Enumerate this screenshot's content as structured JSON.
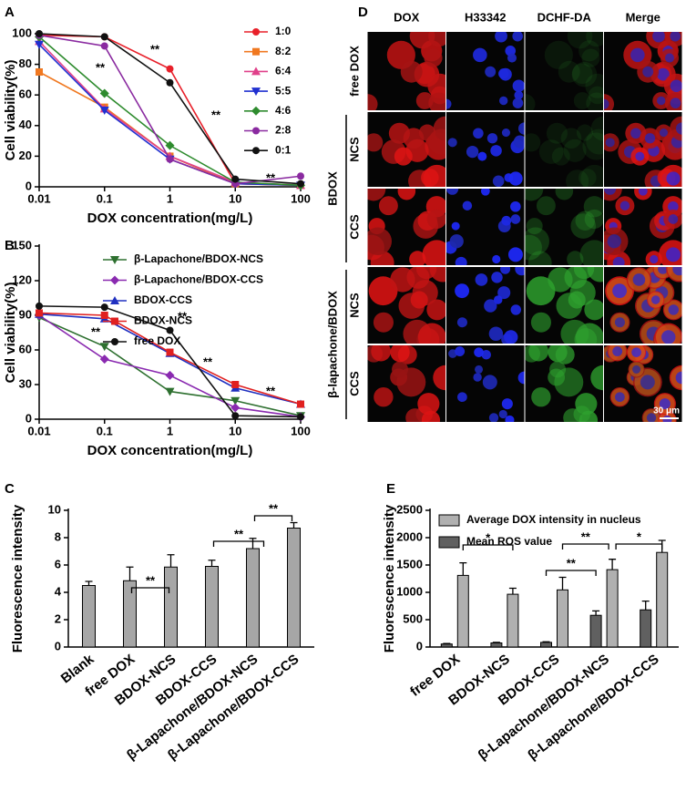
{
  "chart_data": [
    {
      "type": "line",
      "panel": "A",
      "x": [
        0.01,
        0.1,
        1,
        10,
        100
      ],
      "log_x": true,
      "xlim": [
        0.01,
        100
      ],
      "xticks": [
        0.01,
        0.1,
        1,
        10,
        100
      ],
      "ylim": [
        0,
        100
      ],
      "yticks": [
        0,
        20,
        40,
        60,
        80,
        100
      ],
      "x_label": "DOX concentration(mg/L)",
      "y_label": "Cell viability(%)",
      "legend": "upper right",
      "annotations": [
        "**",
        "**",
        "**",
        "**"
      ],
      "series": [
        {
          "name": "1:0",
          "color": "#e8202a",
          "marker": "circle",
          "values": [
            99,
            98,
            77,
            2,
            1
          ]
        },
        {
          "name": "8:2",
          "color": "#f07820",
          "marker": "square",
          "values": [
            75,
            52,
            20,
            2,
            1
          ]
        },
        {
          "name": "6:4",
          "color": "#e0408a",
          "marker": "triangle",
          "values": [
            95,
            51,
            20,
            3,
            1
          ]
        },
        {
          "name": "5:5",
          "color": "#2030d0",
          "marker": "triangle-down",
          "values": [
            93,
            50,
            18,
            2,
            1
          ]
        },
        {
          "name": "4:6",
          "color": "#2e8b2e",
          "marker": "diamond",
          "values": [
            98,
            61,
            27,
            3,
            1
          ]
        },
        {
          "name": "2:8",
          "color": "#8a2aa0",
          "marker": "circle",
          "values": [
            99,
            92,
            18,
            2,
            7
          ]
        },
        {
          "name": "0:1",
          "color": "#111111",
          "marker": "circle",
          "values": [
            100,
            98,
            68,
            5,
            2
          ]
        }
      ]
    },
    {
      "type": "line",
      "panel": "B",
      "x": [
        0.01,
        0.1,
        1,
        10,
        100
      ],
      "log_x": true,
      "xlim": [
        0.01,
        100
      ],
      "xticks": [
        0.01,
        0.1,
        1,
        10,
        100
      ],
      "ylim": [
        0,
        150
      ],
      "yticks": [
        0,
        30,
        60,
        90,
        120,
        150
      ],
      "x_label": "DOX concentration(mg/L)",
      "y_label": "Cell viability(%)",
      "legend": "upper left",
      "annotations": [
        "**",
        "**",
        "**",
        "**"
      ],
      "series": [
        {
          "name": "β-Lapachone/BDOX-NCS",
          "color": "#2e7030",
          "marker": "triangle-down",
          "values": [
            88,
            63,
            24,
            16,
            3
          ]
        },
        {
          "name": "β-Lapachone/BDOX-CCS",
          "color": "#8a2ab0",
          "marker": "diamond",
          "values": [
            90,
            52,
            38,
            10,
            2
          ]
        },
        {
          "name": "BDOX-CCS",
          "color": "#2030c0",
          "marker": "triangle",
          "values": [
            91,
            87,
            57,
            27,
            13
          ]
        },
        {
          "name": "BDOX-NCS",
          "color": "#e02020",
          "marker": "square",
          "values": [
            92,
            90,
            58,
            30,
            13
          ]
        },
        {
          "name": "free DOX",
          "color": "#111111",
          "marker": "circle",
          "values": [
            98,
            97,
            77,
            3,
            2
          ]
        }
      ]
    },
    {
      "type": "bar",
      "panel": "C",
      "categories": [
        "Blank",
        "free DOX",
        "BDOX-NCS",
        "BDOX-CCS",
        "β-Lapachone/BDOX-NCS",
        "β-Lapachone/BDOX-CCS"
      ],
      "values": [
        4.5,
        4.85,
        5.85,
        5.9,
        7.2,
        8.7
      ],
      "errors": [
        0.3,
        1.0,
        0.9,
        0.45,
        0.75,
        0.4
      ],
      "color": "#a6a6a6",
      "ylim": [
        0,
        10
      ],
      "yticks": [
        0,
        2,
        4,
        6,
        8,
        10
      ],
      "y_label": "Fluorescence intensity",
      "annotations": [
        "**",
        "**",
        "**"
      ]
    },
    {
      "type": "grouped_bar",
      "panel": "E",
      "categories": [
        "free DOX",
        "BDOX-NCS",
        "BDOX-CCS",
        "β-Lapachone/BDOX-NCS",
        "β-Lapachone/BDOX-CCS"
      ],
      "series": [
        {
          "name": "Average DOX intensity in nucleus",
          "color": "#b0b0b0",
          "values": [
            1310,
            965,
            1045,
            1415,
            1730
          ],
          "errors": [
            230,
            110,
            230,
            190,
            220
          ]
        },
        {
          "name": "Mean ROS value",
          "color": "#606060",
          "values": [
            55,
            75,
            85,
            580,
            680
          ],
          "errors": [
            10,
            10,
            10,
            80,
            160
          ]
        }
      ],
      "ylim": [
        0,
        2500
      ],
      "yticks": [
        0,
        500,
        1000,
        1500,
        2000,
        2500
      ],
      "y_label": "Fluorescence intensity",
      "legend": "upper left",
      "annotations": [
        "*",
        "**",
        "**",
        "*"
      ]
    }
  ],
  "image_grid": {
    "panel": "D",
    "columns": [
      "DOX",
      "H33342",
      "DCHF-DA",
      "Merge"
    ],
    "rows": [
      {
        "label": "free DOX"
      }
    ],
    "groups": [
      {
        "label": "BDOX",
        "rows": [
          "NCS",
          "CCS"
        ]
      },
      {
        "label": "β-lapachone/BDOX",
        "rows": [
          "NCS",
          "CCS"
        ]
      }
    ],
    "scale_bar": "30 μm"
  }
}
